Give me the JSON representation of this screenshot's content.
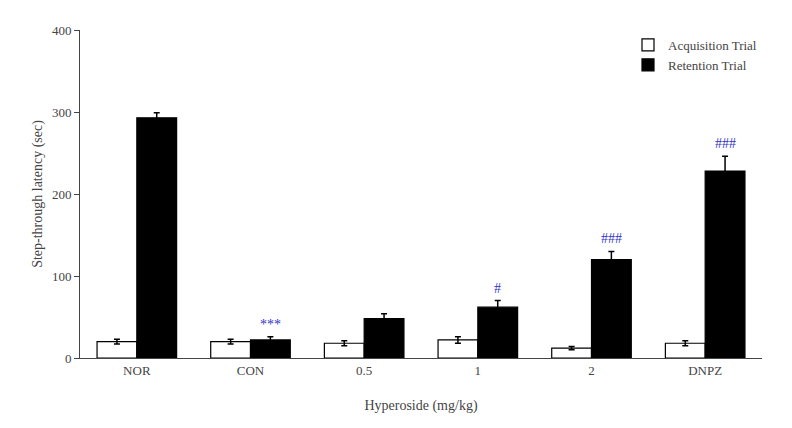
{
  "chart_data": {
    "type": "bar",
    "categories": [
      "NOR",
      "CON",
      "0.5",
      "1",
      "2",
      "DNPZ"
    ],
    "series": [
      {
        "name": "Acquisition Trial",
        "color": "white",
        "values": [
          20,
          20,
          18,
          22,
          12,
          18
        ],
        "errors": [
          3,
          3,
          3,
          4,
          2,
          3
        ]
      },
      {
        "name": "Retention Trial",
        "color": "black",
        "values": [
          293,
          22,
          48,
          62,
          120,
          228
        ],
        "errors": [
          6,
          4,
          6,
          8,
          10,
          18
        ]
      }
    ],
    "ylabel": "Step-through latency (sec)",
    "xlabel": "Hyperoside (mg/kg)",
    "ylim": [
      0,
      400
    ],
    "yticks": [
      0,
      100,
      200,
      300,
      400
    ],
    "grid": false,
    "legend": "upper right",
    "annotations": [
      {
        "text": "***",
        "category": "CON",
        "series": "Retention Trial",
        "color": "#3333cc"
      },
      {
        "text": "#",
        "category": "1",
        "series": "Retention Trial",
        "color": "#3333cc"
      },
      {
        "text": "###",
        "category": "2",
        "series": "Retention Trial",
        "color": "#3333cc"
      },
      {
        "text": "###",
        "category": "DNPZ",
        "series": "Retention Trial",
        "color": "#3333cc"
      }
    ]
  }
}
